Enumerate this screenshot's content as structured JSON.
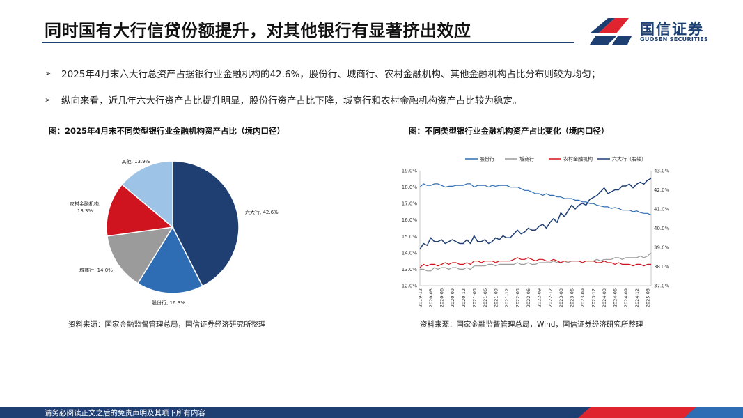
{
  "header": {
    "title": "同时国有大行信贷份额提升，对其他银行有显著挤出效应",
    "logo_text": "国信证券",
    "logo_sub": "GUOSEN SECURITIES"
  },
  "bullets": [
    "2025年4月末六大行总资产占据银行业金融机构的42.6%，股份行、城商行、农村金融机构、其他金融机构占比分布则较为均匀；",
    "纵向来看，近几年六大行资产占比提升明显，股份行资产占比下降，城商行和农村金融机构资产占比较为稳定。"
  ],
  "left_figure": {
    "caption": "图：2025年4月末不同类型银行业金融机构资产占比（境内口径）",
    "source": "资料来源：国家金融监督管理总局，国信证券经济研究所整理"
  },
  "right_figure": {
    "caption": "图：不同类型银行业金融机构资产占比变化（境内口径）",
    "source": "资料来源：国家金融监督管理总局，Wind，国信证券经济研究所整理"
  },
  "footer": {
    "text": "请务必阅读正文之后的免责声明及其项下所有内容"
  },
  "chart_data": [
    {
      "type": "pie",
      "slices": [
        {
          "label": "六大行",
          "value": 42.6,
          "text": "六大行, 42.6%",
          "color": "#1f3f73"
        },
        {
          "label": "股份行",
          "value": 16.3,
          "text": "股份行, 16.3%",
          "color": "#2e6db4"
        },
        {
          "label": "城商行",
          "value": 14.0,
          "text": "城商行, 14.0%",
          "color": "#9b9b9b"
        },
        {
          "label": "农村金融机构",
          "value": 13.3,
          "text1": "农村金融机构,",
          "text2": "13.3%",
          "color": "#d0141f"
        },
        {
          "label": "其他",
          "value": 13.9,
          "text": "其他, 13.9%",
          "color": "#9dc3e6"
        }
      ]
    },
    {
      "type": "line",
      "legend_position": "top",
      "x": [
        "2019-12",
        "2020-01",
        "2020-02",
        "2020-03",
        "2020-04",
        "2020-05",
        "2020-06",
        "2020-07",
        "2020-08",
        "2020-09",
        "2020-10",
        "2020-11",
        "2020-12",
        "2021-01",
        "2021-02",
        "2021-03",
        "2021-04",
        "2021-05",
        "2021-06",
        "2021-07",
        "2021-08",
        "2021-09",
        "2021-10",
        "2021-11",
        "2021-12",
        "2022-01",
        "2022-02",
        "2022-03",
        "2022-04",
        "2022-05",
        "2022-06",
        "2022-07",
        "2022-08",
        "2022-09",
        "2022-10",
        "2022-11",
        "2022-12",
        "2023-01",
        "2023-02",
        "2023-03",
        "2023-04",
        "2023-05",
        "2023-06",
        "2023-07",
        "2023-08",
        "2023-09",
        "2023-10",
        "2023-11",
        "2023-12",
        "2024-01",
        "2024-02",
        "2024-03",
        "2024-04",
        "2024-05",
        "2024-06",
        "2024-07",
        "2024-08",
        "2024-09",
        "2024-10",
        "2024-11",
        "2024-12",
        "2025-01",
        "2025-02",
        "2025-03",
        "2025-04"
      ],
      "x_tick_labels": [
        "2019-12",
        "2020-03",
        "2020-06",
        "2020-09",
        "2020-12",
        "2021-03",
        "2021-06",
        "2021-09",
        "2021-12",
        "2022-03",
        "2022-06",
        "2022-09",
        "2022-12",
        "2023-03",
        "2023-06",
        "2023-09",
        "2023-12",
        "2024-03",
        "2024-06",
        "2024-09",
        "2024-12",
        "2025-03"
      ],
      "left_axis": {
        "ylim": [
          12.0,
          19.0
        ],
        "ticks": [
          "19.0%",
          "18.0%",
          "17.0%",
          "16.0%",
          "15.0%",
          "14.0%",
          "13.0%",
          "12.0%"
        ]
      },
      "right_axis": {
        "ylim": [
          37.0,
          43.0
        ],
        "ticks": [
          "43.0%",
          "42.0%",
          "41.0%",
          "40.0%",
          "39.0%",
          "38.0%",
          "37.0%"
        ]
      },
      "series": [
        {
          "name": "股份行",
          "axis": "left",
          "color": "#2e6db4",
          "values": [
            18.0,
            18.2,
            18.1,
            18.1,
            18.2,
            18.2,
            18.1,
            18.0,
            18.05,
            18.05,
            18.1,
            18.1,
            18.1,
            18.2,
            18.2,
            18.0,
            18.1,
            18.1,
            18.1,
            18.0,
            18.1,
            18.05,
            18.1,
            18.1,
            18.1,
            18.0,
            18.0,
            18.0,
            17.9,
            17.8,
            17.8,
            17.7,
            17.6,
            17.6,
            17.5,
            17.6,
            17.5,
            17.5,
            17.4,
            17.4,
            17.3,
            17.3,
            17.3,
            17.2,
            17.2,
            17.1,
            17.1,
            17.0,
            17.0,
            16.9,
            16.85,
            16.8,
            16.8,
            16.7,
            16.75,
            16.7,
            16.6,
            16.6,
            16.6,
            16.5,
            16.55,
            16.45,
            16.4,
            16.4,
            16.3
          ]
        },
        {
          "name": "城商行",
          "axis": "left",
          "color": "#9b9b9b",
          "values": [
            13.0,
            13.0,
            12.9,
            12.9,
            13.1,
            13.0,
            13.1,
            13.1,
            13.0,
            13.1,
            13.1,
            13.0,
            13.0,
            13.1,
            13.0,
            13.2,
            13.2,
            13.2,
            13.2,
            13.3,
            13.3,
            13.2,
            13.3,
            13.3,
            13.3,
            13.3,
            13.3,
            13.4,
            13.3,
            13.3,
            13.4,
            13.3,
            13.3,
            13.4,
            13.4,
            13.4,
            13.4,
            13.5,
            13.4,
            13.4,
            13.5,
            13.4,
            13.5,
            13.5,
            13.5,
            13.4,
            13.5,
            13.5,
            13.5,
            13.6,
            13.5,
            13.6,
            13.6,
            13.6,
            13.7,
            13.7,
            13.6,
            13.7,
            13.7,
            13.7,
            13.7,
            13.8,
            13.7,
            13.8,
            14.0
          ]
        },
        {
          "name": "农村金融机构",
          "axis": "left",
          "color": "#d0141f",
          "values": [
            13.1,
            13.3,
            13.2,
            13.3,
            13.3,
            13.2,
            13.3,
            13.4,
            13.3,
            13.4,
            13.4,
            13.3,
            13.3,
            13.4,
            13.3,
            13.5,
            13.5,
            13.4,
            13.5,
            13.5,
            13.5,
            13.4,
            13.5,
            13.5,
            13.5,
            13.5,
            13.6,
            13.7,
            13.6,
            13.6,
            13.7,
            13.6,
            13.5,
            13.6,
            13.6,
            13.5,
            13.5,
            13.6,
            13.5,
            13.4,
            13.5,
            13.5,
            13.5,
            13.5,
            13.5,
            13.4,
            13.5,
            13.5,
            13.5,
            13.4,
            13.4,
            13.5,
            13.4,
            13.4,
            13.3,
            13.4,
            13.3,
            13.3,
            13.3,
            13.2,
            13.3,
            13.3,
            13.2,
            13.3,
            13.3
          ]
        },
        {
          "name": "六大行（右轴）",
          "axis": "right",
          "color": "#1f3f73",
          "values": [
            38.9,
            39.2,
            39.1,
            39.5,
            39.3,
            39.3,
            39.4,
            39.2,
            39.3,
            39.4,
            39.3,
            39.2,
            39.2,
            39.4,
            39.2,
            39.6,
            39.3,
            39.3,
            39.4,
            39.2,
            39.3,
            39.5,
            39.4,
            39.6,
            39.5,
            39.5,
            39.7,
            39.9,
            39.7,
            39.8,
            40.0,
            39.9,
            39.9,
            40.1,
            40.2,
            40.0,
            40.3,
            40.5,
            40.3,
            40.8,
            40.6,
            40.9,
            41.2,
            41.0,
            41.2,
            41.3,
            41.2,
            41.5,
            41.6,
            41.7,
            41.9,
            42.1,
            41.8,
            41.9,
            42.0,
            42.0,
            42.2,
            42.2,
            42.3,
            42.1,
            42.3,
            42.4,
            42.3,
            42.5,
            42.6
          ]
        }
      ]
    }
  ]
}
